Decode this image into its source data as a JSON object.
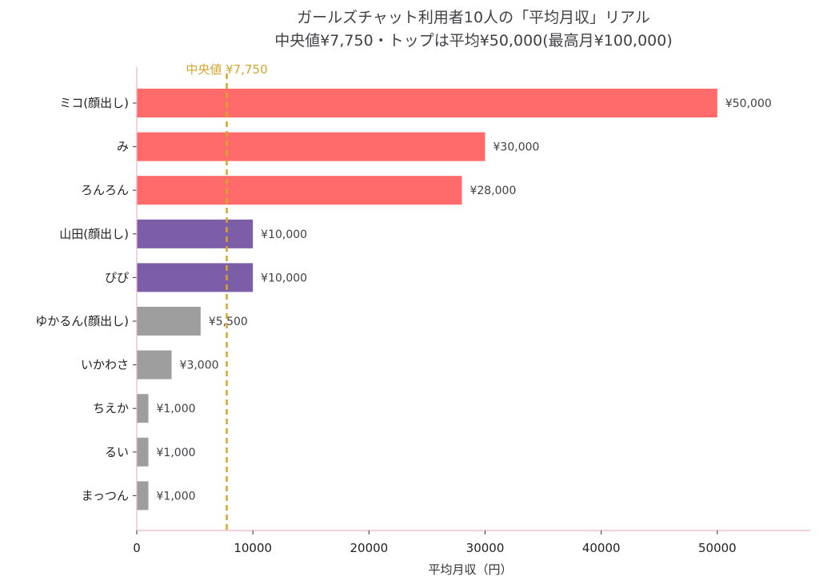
{
  "chart_data": {
    "type": "bar",
    "orientation": "horizontal",
    "title_lines": [
      "ガールズチャット利用者10人の「平均月収」リアル",
      "中央値¥7,750・トップは平均¥50,000(最高月¥100,000)"
    ],
    "xlabel": "平均月収（円）",
    "ylabel": "",
    "xlim": [
      0,
      58000
    ],
    "xticks": [
      0,
      10000,
      20000,
      30000,
      40000,
      50000
    ],
    "grid": false,
    "categories": [
      "ミコ(顔出し)",
      "み",
      "ろんろん",
      "山田(顔出し)",
      "ぴぴ",
      "ゆかるん(顔出し)",
      "いかわさ",
      "ちえか",
      "るい",
      "まっつん"
    ],
    "values": [
      50000,
      30000,
      28000,
      10000,
      10000,
      5500,
      3000,
      1000,
      1000,
      1000
    ],
    "value_labels": [
      "¥50,000",
      "¥30,000",
      "¥28,000",
      "¥10,000",
      "¥10,000",
      "¥5,500",
      "¥3,000",
      "¥1,000",
      "¥1,000",
      "¥1,000"
    ],
    "bar_colors": [
      "#ff6b6b",
      "#ff6b6b",
      "#ff6b6b",
      "#7b5ea7",
      "#7b5ea7",
      "#9e9e9e",
      "#9e9e9e",
      "#9e9e9e",
      "#9e9e9e",
      "#9e9e9e"
    ],
    "median": {
      "value": 7750,
      "label": "中央値 ¥7,750",
      "color": "#d4a72c",
      "style": "dashed"
    },
    "axis_color": "#e8b4c4"
  }
}
